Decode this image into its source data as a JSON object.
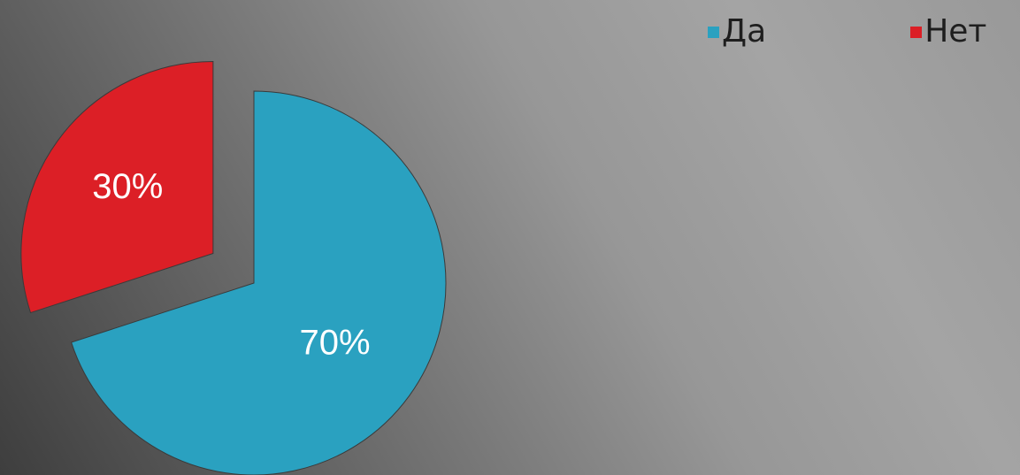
{
  "chart_data": {
    "type": "pie",
    "title": "",
    "legend_position": "top-right",
    "exploded": true,
    "slices": [
      {
        "label": "Да",
        "value": 70,
        "data_label": "70%",
        "color": "#2aa1c0"
      },
      {
        "label": "Нет",
        "value": 30,
        "data_label": "30%",
        "color": "#dc1f26"
      }
    ]
  },
  "legend": {
    "items": [
      {
        "label": "Да",
        "color": "#2aa1c0"
      },
      {
        "label": "Нет",
        "color": "#dc1f26"
      }
    ]
  }
}
